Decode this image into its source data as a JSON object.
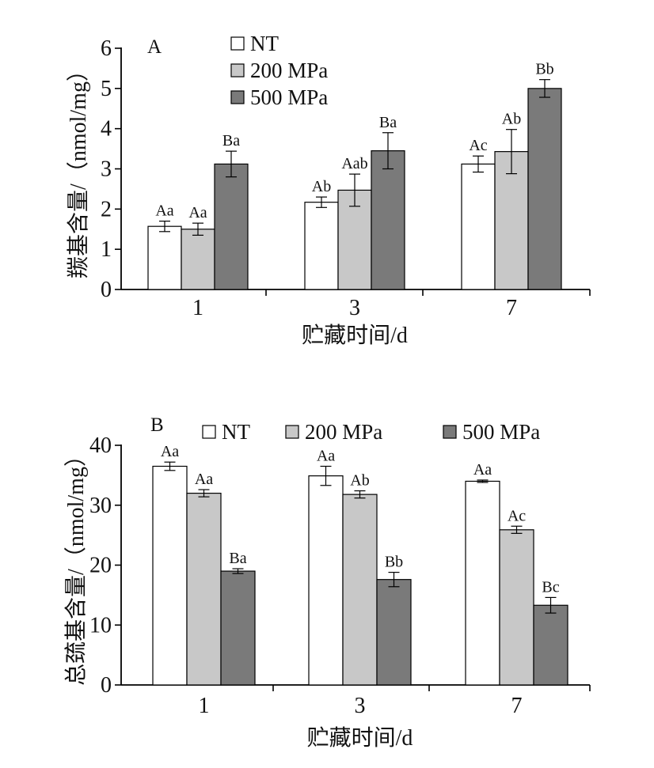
{
  "chart_data": [
    {
      "type": "bar",
      "panel_label": "A",
      "categories": [
        "1",
        "3",
        "7"
      ],
      "xlabel": "贮藏时间/d",
      "ylabel": "羰基含量/（nmol/mg）",
      "ylim": [
        0,
        6
      ],
      "yticks": [
        "0",
        "1",
        "2",
        "3",
        "4",
        "5",
        "6"
      ],
      "legend": {
        "placement": "top-left, stacked",
        "entries": [
          "NT",
          "200 MPa",
          "500 MPa"
        ]
      },
      "series": [
        {
          "name": "NT",
          "color": "#ffffff",
          "values": [
            1.57,
            2.17,
            3.12
          ],
          "errors": [
            0.13,
            0.13,
            0.2
          ],
          "labels": [
            "Aa",
            "Ab",
            "Ac"
          ]
        },
        {
          "name": "200 MPa",
          "color": "#c8c8c8",
          "values": [
            1.5,
            2.47,
            3.43
          ],
          "errors": [
            0.15,
            0.4,
            0.55
          ],
          "labels": [
            "Aa",
            "Aab",
            "Ab"
          ]
        },
        {
          "name": "500 MPa",
          "color": "#7a7a7a",
          "values": [
            3.12,
            3.45,
            5.0
          ],
          "errors": [
            0.32,
            0.45,
            0.22
          ],
          "labels": [
            "Ba",
            "Ba",
            "Bb"
          ]
        }
      ]
    },
    {
      "type": "bar",
      "panel_label": "B",
      "categories": [
        "1",
        "3",
        "7"
      ],
      "xlabel": "贮藏时间/d",
      "ylabel": "总巯基含量/（nmol/mg）",
      "ylim": [
        0,
        40
      ],
      "yticks": [
        "0",
        "10",
        "20",
        "30",
        "40"
      ],
      "legend": {
        "placement": "top, horizontal",
        "entries": [
          "NT",
          "200 MPa",
          "500 MPa"
        ]
      },
      "series": [
        {
          "name": "NT",
          "color": "#ffffff",
          "values": [
            36.5,
            34.9,
            34.0
          ],
          "errors": [
            0.7,
            1.6,
            0.2
          ],
          "labels": [
            "Aa",
            "Aa",
            "Aa"
          ]
        },
        {
          "name": "200 MPa",
          "color": "#c8c8c8",
          "values": [
            32.0,
            31.8,
            25.9
          ],
          "errors": [
            0.6,
            0.6,
            0.6
          ],
          "labels": [
            "Aa",
            "Ab",
            "Ac"
          ]
        },
        {
          "name": "500 MPa",
          "color": "#7a7a7a",
          "values": [
            19.0,
            17.6,
            13.3
          ],
          "errors": [
            0.4,
            1.2,
            1.3
          ],
          "labels": [
            "Ba",
            "Bb",
            "Bc"
          ]
        }
      ]
    }
  ]
}
